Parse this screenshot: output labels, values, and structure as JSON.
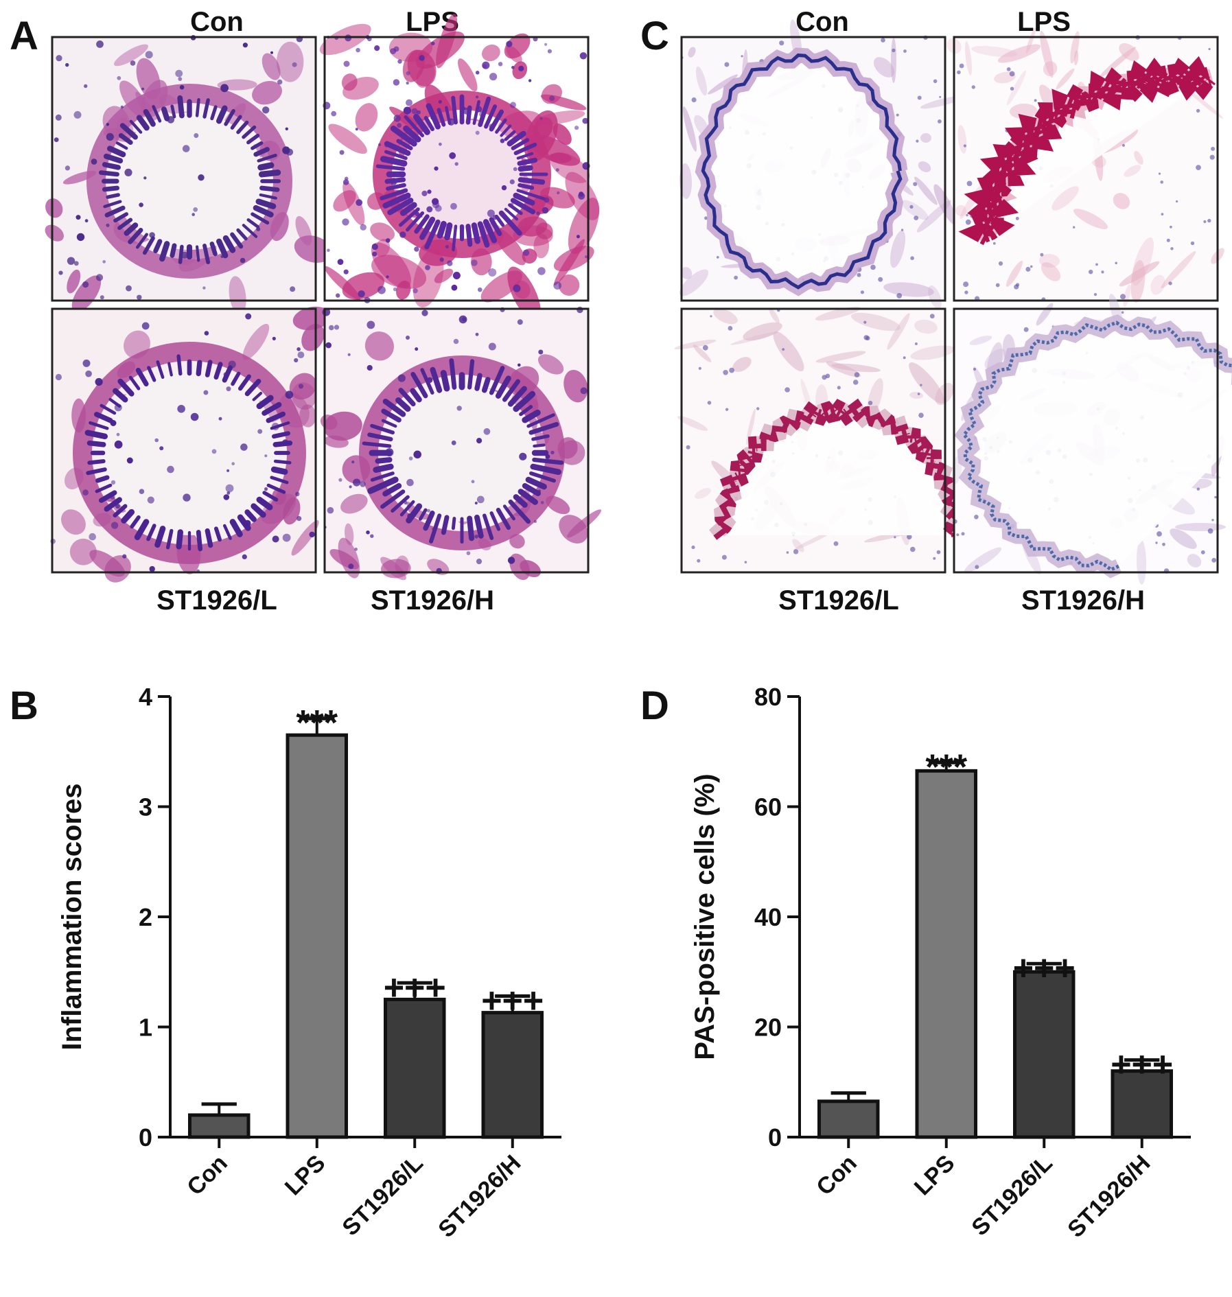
{
  "panels": {
    "A": {
      "letter": "A",
      "top_labels": [
        "Con",
        "LPS"
      ],
      "bottom_labels": [
        "ST1926/L",
        "ST1926/H"
      ],
      "images": [
        {
          "name": "Con",
          "stain": "H&E",
          "colors": {
            "bg": "#f5eef2",
            "tissue": "#b45aa3",
            "nuclei": "#4a2a8a"
          }
        },
        {
          "name": "LPS",
          "stain": "H&E",
          "colors": {
            "bg": "#ffffff",
            "tissue": "#c2327e",
            "nuclei": "#5b2aa0"
          }
        },
        {
          "name": "ST1926/L",
          "stain": "H&E",
          "colors": {
            "bg": "#f7eef2",
            "tissue": "#b04c98",
            "nuclei": "#4a2490"
          }
        },
        {
          "name": "ST1926/H",
          "stain": "H&E",
          "colors": {
            "bg": "#f8f0f4",
            "tissue": "#b14c99",
            "nuclei": "#4f2893"
          }
        }
      ]
    },
    "C": {
      "letter": "C",
      "top_labels": [
        "Con",
        "LPS"
      ],
      "bottom_labels": [
        "ST1926/L",
        "ST1926/H"
      ],
      "images": [
        {
          "name": "Con",
          "stain": "PAS",
          "colors": {
            "bg": "#fbf8fb",
            "tissue": "#c8a8d0",
            "lining": "#2b2f8c"
          }
        },
        {
          "name": "LPS",
          "stain": "PAS",
          "colors": {
            "bg": "#fdfafc",
            "tissue": "#e7b3c6",
            "lining": "#b0124f"
          }
        },
        {
          "name": "ST1926/L",
          "stain": "PAS",
          "colors": {
            "bg": "#fcf8fa",
            "tissue": "#dcb6c8",
            "lining": "#a61a55"
          }
        },
        {
          "name": "ST1926/H",
          "stain": "PAS",
          "colors": {
            "bg": "#fdfbfd",
            "tissue": "#cdb8d8",
            "lining": "#4e6aa8"
          }
        }
      ]
    }
  },
  "chart_data": [
    {
      "panel": "B",
      "type": "bar",
      "categories": [
        "Con",
        "LPS",
        "ST1926/L",
        "ST1926/H"
      ],
      "values": [
        0.2,
        3.65,
        1.25,
        1.13
      ],
      "errors": [
        0.1,
        0.15,
        0.15,
        0.15
      ],
      "annotations": [
        "",
        "***",
        "+++",
        "+++"
      ],
      "bar_colors": [
        "#545454",
        "#7a7a7a",
        "#3b3b3b",
        "#3b3b3b"
      ],
      "ylabel": "Inflammation scores",
      "ylim": [
        0,
        4
      ],
      "yticks": [
        0,
        1,
        2,
        3,
        4
      ]
    },
    {
      "panel": "D",
      "type": "bar",
      "categories": [
        "Con",
        "LPS",
        "ST1926/L",
        "ST1926/H"
      ],
      "values": [
        6.5,
        66.5,
        30,
        12
      ],
      "errors": [
        1.5,
        1.5,
        1.5,
        2
      ],
      "annotations": [
        "",
        "***",
        "+++",
        "+++"
      ],
      "bar_colors": [
        "#545454",
        "#7a7a7a",
        "#3b3b3b",
        "#3b3b3b"
      ],
      "ylabel": "PAS-positive cells (%)",
      "ylim": [
        0,
        80
      ],
      "yticks": [
        0,
        20,
        40,
        60,
        80
      ]
    }
  ]
}
